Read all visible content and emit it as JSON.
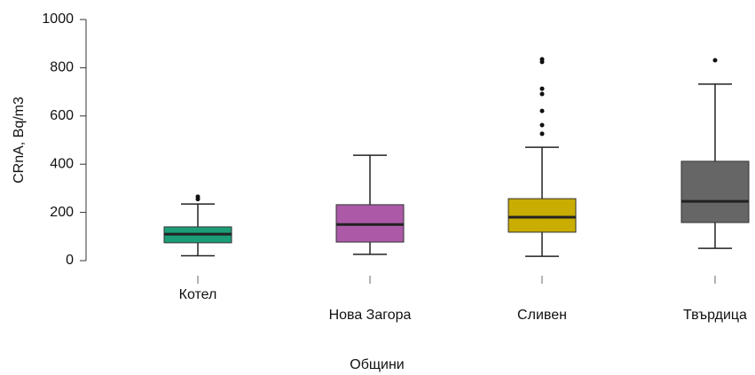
{
  "chart_data": {
    "type": "box",
    "x_label": "Общини",
    "y_label": "CRnA, Bq/m3",
    "categories": [
      "Котел",
      "Нова Загора",
      "Сливен",
      "Твърдица"
    ],
    "boxes": [
      {
        "color": "#1b9e77",
        "low": 20,
        "q1": 74,
        "median": 110,
        "q3": 140,
        "high": 235,
        "outliers": [
          255,
          265
        ]
      },
      {
        "color": "#ac5aa8",
        "low": 26,
        "q1": 77,
        "median": 150,
        "q3": 232,
        "high": 437,
        "outliers": []
      },
      {
        "color": "#c9ad00",
        "low": 18,
        "q1": 118,
        "median": 180,
        "q3": 257,
        "high": 470,
        "outliers": [
          526,
          562,
          621,
          691,
          713,
          824,
          835
        ]
      },
      {
        "color": "#666666",
        "low": 51,
        "q1": 158,
        "median": 246,
        "q3": 412,
        "high": 732,
        "outliers": [
          831
        ]
      }
    ],
    "ylim": [
      0,
      1000
    ],
    "yticks": [
      0,
      200,
      400,
      600,
      800,
      1000
    ]
  }
}
